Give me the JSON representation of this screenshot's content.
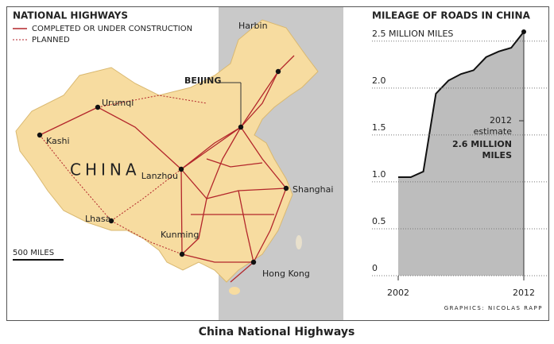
{
  "map": {
    "title": "NATIONAL HIGHWAYS",
    "legend": [
      {
        "label": "COMPLETED OR UNDER CONSTRUCTION",
        "style": "solid"
      },
      {
        "label": "PLANNED",
        "style": "dotted"
      }
    ],
    "country_label": "CHINA",
    "cities": [
      "Harbin",
      "BEIJING",
      "Urumqi",
      "Kashi",
      "Lanzhou",
      "Shanghai",
      "Lhasa",
      "Kunming",
      "Hong Kong"
    ],
    "scale_label": "500 MILES"
  },
  "chart_data": {
    "type": "area",
    "title": "MILEAGE OF ROADS IN CHINA",
    "x": [
      2002,
      2003,
      2004,
      2005,
      2006,
      2007,
      2008,
      2009,
      2010,
      2011,
      2012
    ],
    "values": [
      1.05,
      1.05,
      1.11,
      1.94,
      2.08,
      2.15,
      2.19,
      2.33,
      2.39,
      2.43,
      2.6
    ],
    "color": "#bdbdbd",
    "line_color": "#111111",
    "xlim": [
      2002,
      2012
    ],
    "xticks": [
      2002,
      2012
    ],
    "ylim": [
      0,
      2.6
    ],
    "yticks": [
      0,
      0.5,
      {
        "value": 1.0,
        "label": "1.0"
      },
      1.5,
      {
        "value": 2.0,
        "label": "2.0"
      },
      {
        "value": 2.5,
        "label": "2.5 MILLION MILES"
      }
    ],
    "grid": true,
    "annotation": {
      "lines": [
        "2012",
        "estimate"
      ],
      "highlight": [
        "2.6 MILLION",
        "MILES"
      ]
    },
    "credit": "GRAPHICS: NICOLAS RAPP"
  },
  "caption": "China National Highways"
}
